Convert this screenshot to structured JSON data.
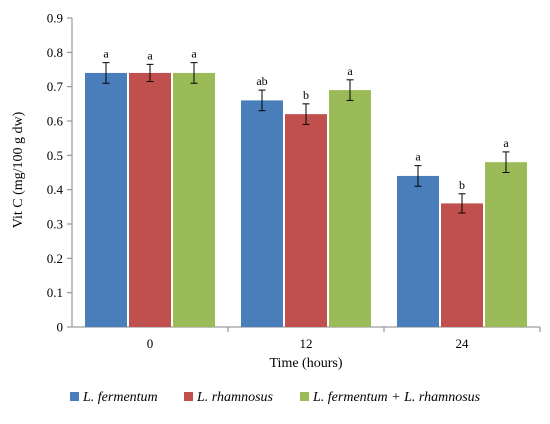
{
  "chart_data": {
    "type": "bar",
    "categories": [
      "0",
      "12",
      "24"
    ],
    "xlabel": "Time (hours)",
    "ylabel": "Vit C (mg/100 g dw)",
    "ylim": [
      0,
      0.9
    ],
    "yticks": [
      "0",
      "0.1",
      "0.2",
      "0.3",
      "0.4",
      "0.5",
      "0.6",
      "0.7",
      "0.8",
      "0.9"
    ],
    "grid": false,
    "legend_position": "bottom",
    "series": [
      {
        "name": "L. fermentum",
        "color": "#4a7ebb",
        "values": [
          0.74,
          0.66,
          0.44
        ],
        "errors": [
          0.03,
          0.03,
          0.03
        ],
        "labels": [
          "a",
          "ab",
          "a"
        ]
      },
      {
        "name": "L. rhamnosus",
        "color": "#c0504d",
        "values": [
          0.74,
          0.62,
          0.36
        ],
        "errors": [
          0.025,
          0.03,
          0.028
        ],
        "labels": [
          "a",
          "b",
          "b"
        ]
      },
      {
        "name": "L. fermentum + L. rhamnosus",
        "color": "#9bbb59",
        "values": [
          0.74,
          0.69,
          0.48
        ],
        "errors": [
          0.03,
          0.03,
          0.03
        ],
        "labels": [
          "a",
          "a",
          "a"
        ]
      }
    ]
  }
}
